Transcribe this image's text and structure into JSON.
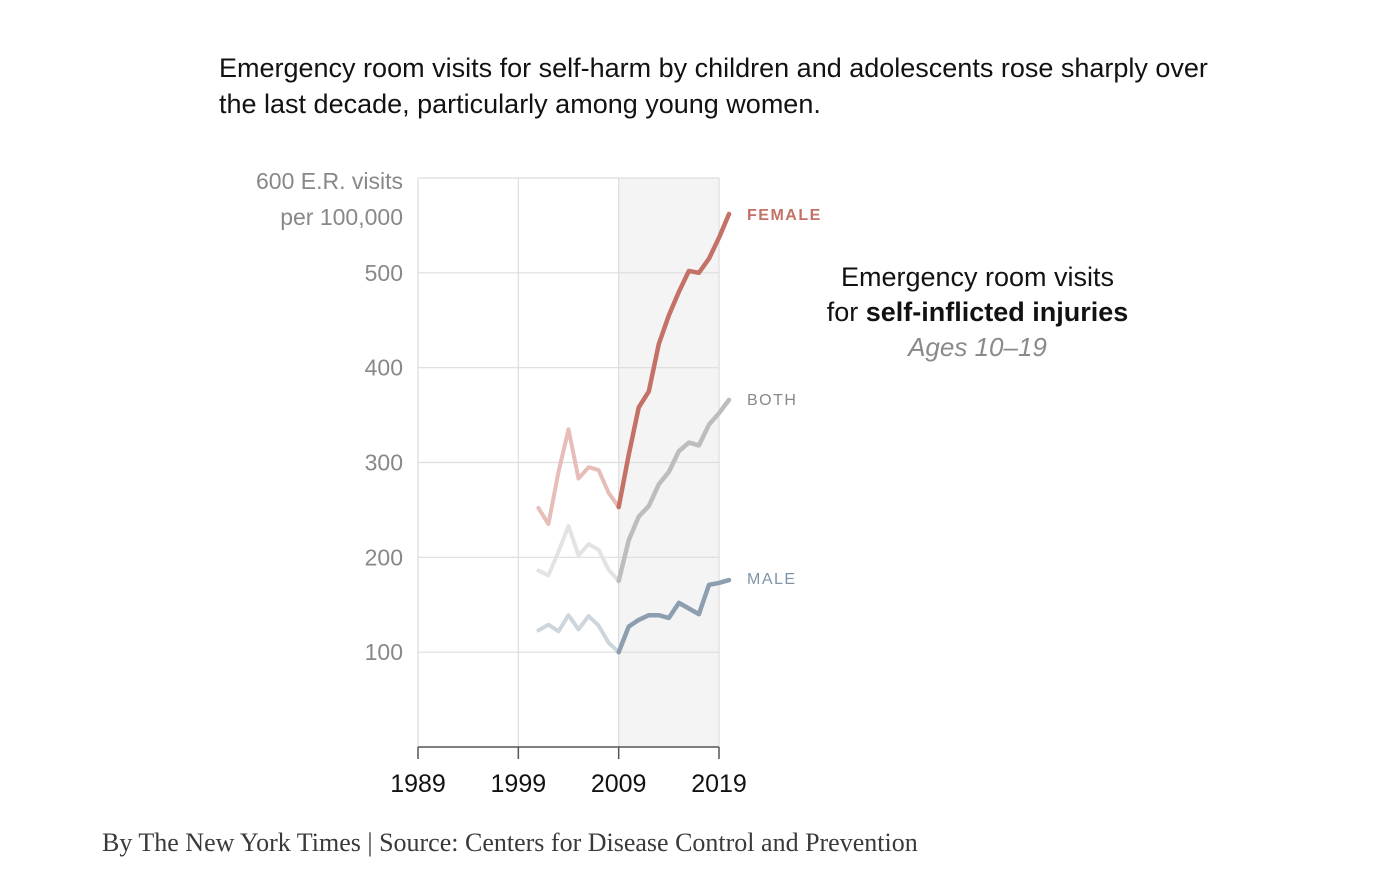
{
  "subtitle": "Emergency room visits for self-harm by children and adolescents rose sharply over the last decade, particularly among young women.",
  "annotation": {
    "line1": "Emergency room visits",
    "line2_prefix": "for ",
    "line2_bold": "self-inflicted injuries",
    "line3": "Ages 10–19"
  },
  "credit": "By The New York Times | Source: Centers for Disease Control and Prevention",
  "colors": {
    "female": "#c47168",
    "female_faded": "#e6bdb8",
    "both": "#bdbdbd",
    "both_faded": "#e3e3e3",
    "male": "#8c9eb0",
    "male_faded": "#cdd5dd",
    "shade": "#f4f4f4",
    "grid": "#dddddd"
  },
  "chart_data": {
    "type": "line",
    "ylabel_line1": "600 E.R. visits",
    "ylabel_line2": "per 100,000",
    "ylim": [
      0,
      600
    ],
    "yticks": [
      100,
      200,
      300,
      400,
      500
    ],
    "xlim": [
      1989,
      2019
    ],
    "xticks": [
      1989,
      1999,
      2009,
      2019
    ],
    "highlight_from": 2009,
    "grid": true,
    "series": [
      {
        "name": "FEMALE",
        "key": "female",
        "x": [
          2001,
          2002,
          2003,
          2004,
          2005,
          2006,
          2007,
          2008,
          2009,
          2010,
          2011,
          2012,
          2013,
          2014,
          2015,
          2016,
          2017,
          2018,
          2019,
          2020
        ],
        "y": [
          252,
          235,
          290,
          335,
          283,
          295,
          292,
          268,
          253,
          308,
          358,
          375,
          425,
          455,
          480,
          502,
          500,
          515,
          537,
          562
        ]
      },
      {
        "name": "BOTH",
        "key": "both",
        "x": [
          2001,
          2002,
          2003,
          2004,
          2005,
          2006,
          2007,
          2008,
          2009,
          2010,
          2011,
          2012,
          2013,
          2014,
          2015,
          2016,
          2017,
          2018,
          2019,
          2020
        ],
        "y": [
          186,
          181,
          206,
          233,
          202,
          214,
          208,
          187,
          175,
          218,
          243,
          254,
          277,
          290,
          312,
          321,
          318,
          340,
          352,
          366
        ]
      },
      {
        "name": "MALE",
        "key": "male",
        "x": [
          2001,
          2002,
          2003,
          2004,
          2005,
          2006,
          2007,
          2008,
          2009,
          2010,
          2011,
          2012,
          2013,
          2014,
          2015,
          2016,
          2017,
          2018,
          2019,
          2020
        ],
        "y": [
          123,
          129,
          122,
          139,
          124,
          138,
          128,
          110,
          100,
          127,
          134,
          139,
          139,
          136,
          152,
          146,
          140,
          171,
          173,
          176
        ]
      }
    ]
  }
}
